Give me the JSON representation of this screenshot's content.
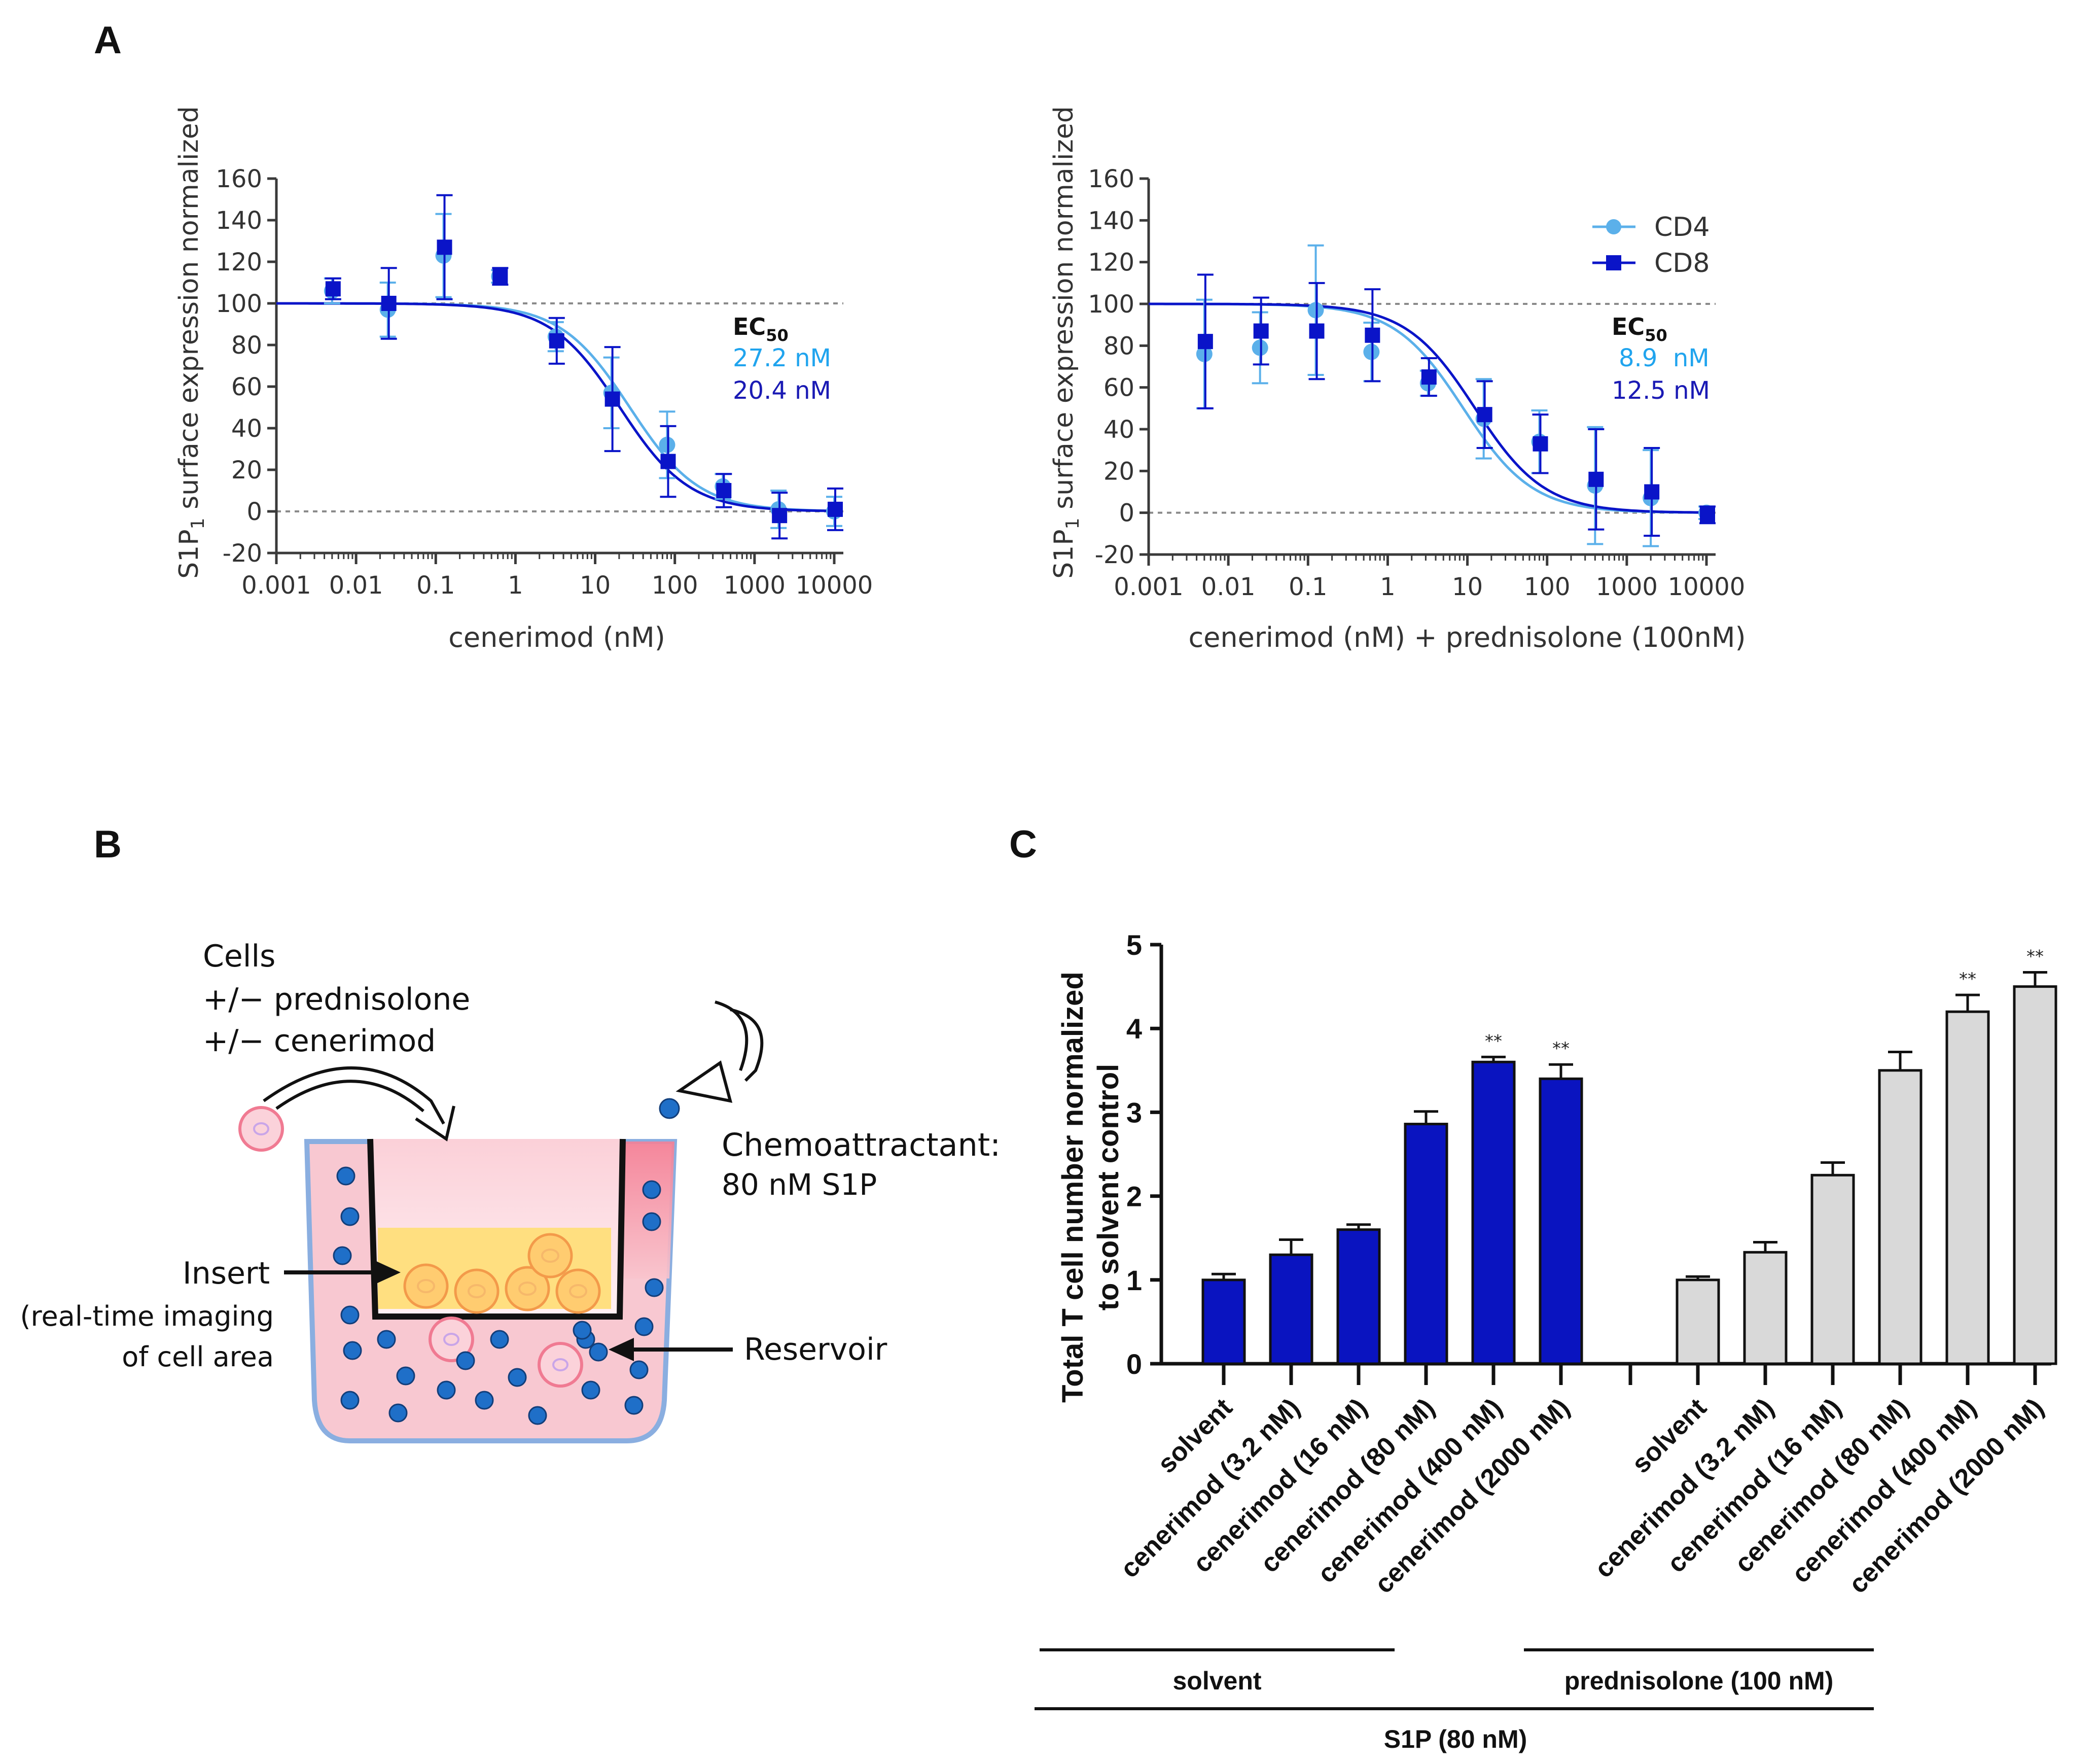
{
  "colors": {
    "cd4": "#5bb0ea",
    "cd8": "#0a14c8",
    "ec_cd4": "#20a4ee",
    "ec_cd8": "#1a1ab4",
    "bar_solvent": "#0a14c0",
    "bar_pred": "#d9d9d9",
    "axis": "#3a3a3a",
    "text": "#333333"
  },
  "panel_labels": {
    "a": "A",
    "b": "B",
    "c": "C"
  },
  "panel_a": {
    "ylabel_pre": "S1P",
    "ylabel_sub": "1",
    "ylabel_post": " surface expression normalized",
    "ec50_head": "EC",
    "ec50_sub": "50",
    "legend": {
      "cd4": "CD4",
      "cd8": "CD8"
    }
  },
  "panel_b": {
    "cells_line1": "Cells",
    "cells_line2": "+/− prednisolone",
    "cells_line3": "+/− cenerimod",
    "chemo_line1": "Chemoattractant:",
    "chemo_line2": "80 nM S1P",
    "insert_label": "Insert",
    "imaging_line1": "(real-time imaging",
    "imaging_line2": "of cell area",
    "reservoir_label": "Reservoir"
  },
  "chart_data": [
    {
      "type": "scatter",
      "panel": "A-left",
      "xscale": "log",
      "xlabel": "cenerimod (nM)",
      "xlim": [
        0.001,
        10000
      ],
      "xticks": [
        "0.001",
        "0.01",
        "0.1",
        "1",
        "10",
        "100",
        "1000",
        "10000"
      ],
      "ylim": [
        -20,
        160
      ],
      "yticks": [
        "-20",
        "0",
        "20",
        "40",
        "60",
        "80",
        "100",
        "120",
        "140",
        "160"
      ],
      "reference_lines": [
        0,
        100
      ],
      "series": [
        {
          "key": "cd4",
          "x": [
            0.005,
            0.025,
            0.125,
            0.625,
            3.2,
            16,
            80,
            400,
            2000,
            10000
          ],
          "y": [
            106,
            97,
            123,
            113,
            84,
            57,
            32,
            12,
            1,
            0
          ],
          "err": [
            6,
            13,
            20,
            3,
            7,
            17,
            16,
            6,
            9,
            7
          ],
          "ec50": 27.2,
          "ec50_label": "27.2 nM"
        },
        {
          "key": "cd8",
          "x": [
            0.005,
            0.025,
            0.125,
            0.625,
            3.2,
            16,
            80,
            400,
            2000,
            10000
          ],
          "y": [
            107,
            100,
            127,
            113,
            82,
            54,
            24,
            10,
            -2,
            1
          ],
          "err": [
            5,
            17,
            25,
            4,
            11,
            25,
            17,
            8,
            11,
            10
          ],
          "ec50": 20.4,
          "ec50_label": "20.4 nM"
        }
      ]
    },
    {
      "type": "scatter",
      "panel": "A-right",
      "xscale": "log",
      "xlabel": "cenerimod (nM) + prednisolone (100nM)",
      "xlim": [
        0.001,
        10000
      ],
      "xticks": [
        "0.001",
        "0.01",
        "0.1",
        "1",
        "10",
        "100",
        "1000",
        "10000"
      ],
      "ylim": [
        -20,
        160
      ],
      "yticks": [
        "-20",
        "0",
        "20",
        "40",
        "60",
        "80",
        "100",
        "120",
        "140",
        "160"
      ],
      "reference_lines": [
        0,
        100
      ],
      "series": [
        {
          "key": "cd4",
          "x": [
            0.005,
            0.025,
            0.125,
            0.625,
            3.2,
            16,
            80,
            400,
            2000,
            10000
          ],
          "y": [
            76,
            79,
            97,
            77,
            62,
            45,
            34,
            13,
            7,
            0
          ],
          "err": [
            26,
            17,
            31,
            14,
            6,
            19,
            15,
            28,
            23,
            3
          ],
          "ec50": 8.9,
          "ec50_label": "8.9  nM"
        },
        {
          "key": "cd8",
          "x": [
            0.005,
            0.025,
            0.125,
            0.625,
            3.2,
            16,
            80,
            400,
            2000,
            10000
          ],
          "y": [
            82,
            87,
            87,
            85,
            65,
            47,
            33,
            16,
            10,
            -1
          ],
          "err": [
            32,
            16,
            23,
            22,
            9,
            16,
            14,
            24,
            21,
            4
          ],
          "ec50": 12.5,
          "ec50_label": "12.5 nM"
        }
      ]
    },
    {
      "type": "bar",
      "panel": "C",
      "ylabel": "Total T cell number normalized to solvent control",
      "ylabel_line1": "Total T cell number normalized",
      "ylabel_line2": "to solvent control",
      "ylim": [
        0,
        5
      ],
      "yticks": [
        "0",
        "1",
        "2",
        "3",
        "4",
        "5"
      ],
      "groups": [
        {
          "label": "solvent",
          "color_key": "bar_solvent",
          "categories": [
            "solvent",
            "cenerimod (3.2 nM)",
            "cenerimod (16 nM)",
            "cenerimod (80 nM)",
            "cenerimod (400 nM)",
            "cenerimod (2000 nM)"
          ],
          "values": [
            1.0,
            1.3,
            1.6,
            2.86,
            3.6,
            3.4
          ],
          "err": [
            0.07,
            0.18,
            0.06,
            0.15,
            0.06,
            0.17
          ],
          "significance": [
            "",
            "",
            "",
            "",
            "**",
            "**"
          ]
        },
        {
          "label": "prednisolone (100 nM)",
          "color_key": "bar_pred",
          "categories": [
            "solvent",
            "cenerimod (3.2 nM)",
            "cenerimod (16 nM)",
            "cenerimod (80 nM)",
            "cenerimod (400 nM)",
            "cenerimod (2000 nM)"
          ],
          "values": [
            1.0,
            1.33,
            2.25,
            3.5,
            4.2,
            4.5
          ],
          "err": [
            0.04,
            0.12,
            0.15,
            0.22,
            0.2,
            0.17
          ],
          "significance": [
            "",
            "",
            "",
            "",
            "**",
            "**"
          ]
        }
      ],
      "bottom_label": "S1P (80 nM)"
    }
  ]
}
